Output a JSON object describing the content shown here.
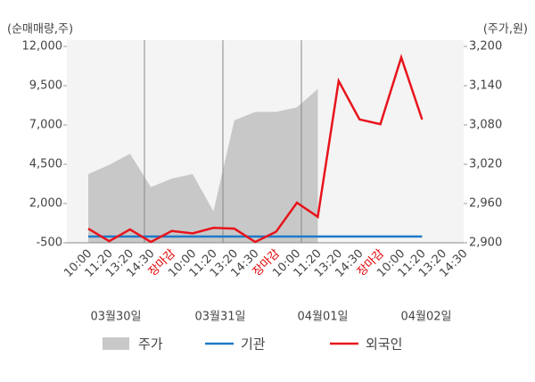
{
  "chart_data": {
    "type": "line",
    "y_axis_title": "(순매매량,주)",
    "y2_axis_title": "(주가,원)",
    "categories": [
      "10:00",
      "11:20",
      "13:20",
      "14:30",
      "장마감",
      "10:00",
      "11:20",
      "13:20",
      "14:30",
      "장마감",
      "10:00",
      "11:20",
      "13:20",
      "14:30",
      "장마감",
      "10:00",
      "11:20",
      "13:20",
      "14:30"
    ],
    "highlight_category": "장마감",
    "highlight_color": "#e00000",
    "date_labels": [
      "03월30일",
      "03월31일",
      "04월01일",
      "04월02일"
    ],
    "ylim": [
      -500,
      12000
    ],
    "yticks": [
      {
        "value": -500,
        "label": "-500"
      },
      {
        "value": 2000,
        "label": "2,000"
      },
      {
        "value": 4500,
        "label": "4,500"
      },
      {
        "value": 7000,
        "label": "7,000"
      },
      {
        "value": 9500,
        "label": "9,500"
      },
      {
        "value": 12000,
        "label": "12,000"
      }
    ],
    "y2lim": [
      2900,
      3200
    ],
    "y2ticks": [
      {
        "value": 2900,
        "label": "2,900"
      },
      {
        "value": 2960,
        "label": "2,960"
      },
      {
        "value": 3020,
        "label": "3,020"
      },
      {
        "value": 3080,
        "label": "3,080"
      },
      {
        "value": 3140,
        "label": "3,140"
      },
      {
        "value": 3200,
        "label": "3,200"
      }
    ],
    "series": [
      {
        "name": "주가",
        "type": "area",
        "axis": "y2",
        "color": "#c8c8c8",
        "values": [
          3005,
          3019,
          3036,
          2985,
          2998,
          3005,
          2948,
          3087,
          3100,
          3100,
          3107,
          3135,
          null,
          null,
          null,
          null,
          null,
          null,
          null
        ]
      },
      {
        "name": "기관",
        "type": "line",
        "color": "#1f7ac8",
        "values": [
          -100,
          -100,
          -100,
          -100,
          -100,
          -100,
          -100,
          -100,
          -100,
          -100,
          -100,
          -100,
          -100,
          -100,
          -100,
          -100,
          -100,
          null,
          null
        ]
      },
      {
        "name": "외국인",
        "type": "line",
        "color": "#e8141c",
        "values": [
          400,
          -400,
          350,
          -450,
          250,
          100,
          450,
          400,
          -450,
          200,
          2050,
          1150,
          9800,
          7350,
          7050,
          11300,
          7350,
          null,
          null
        ]
      }
    ]
  }
}
